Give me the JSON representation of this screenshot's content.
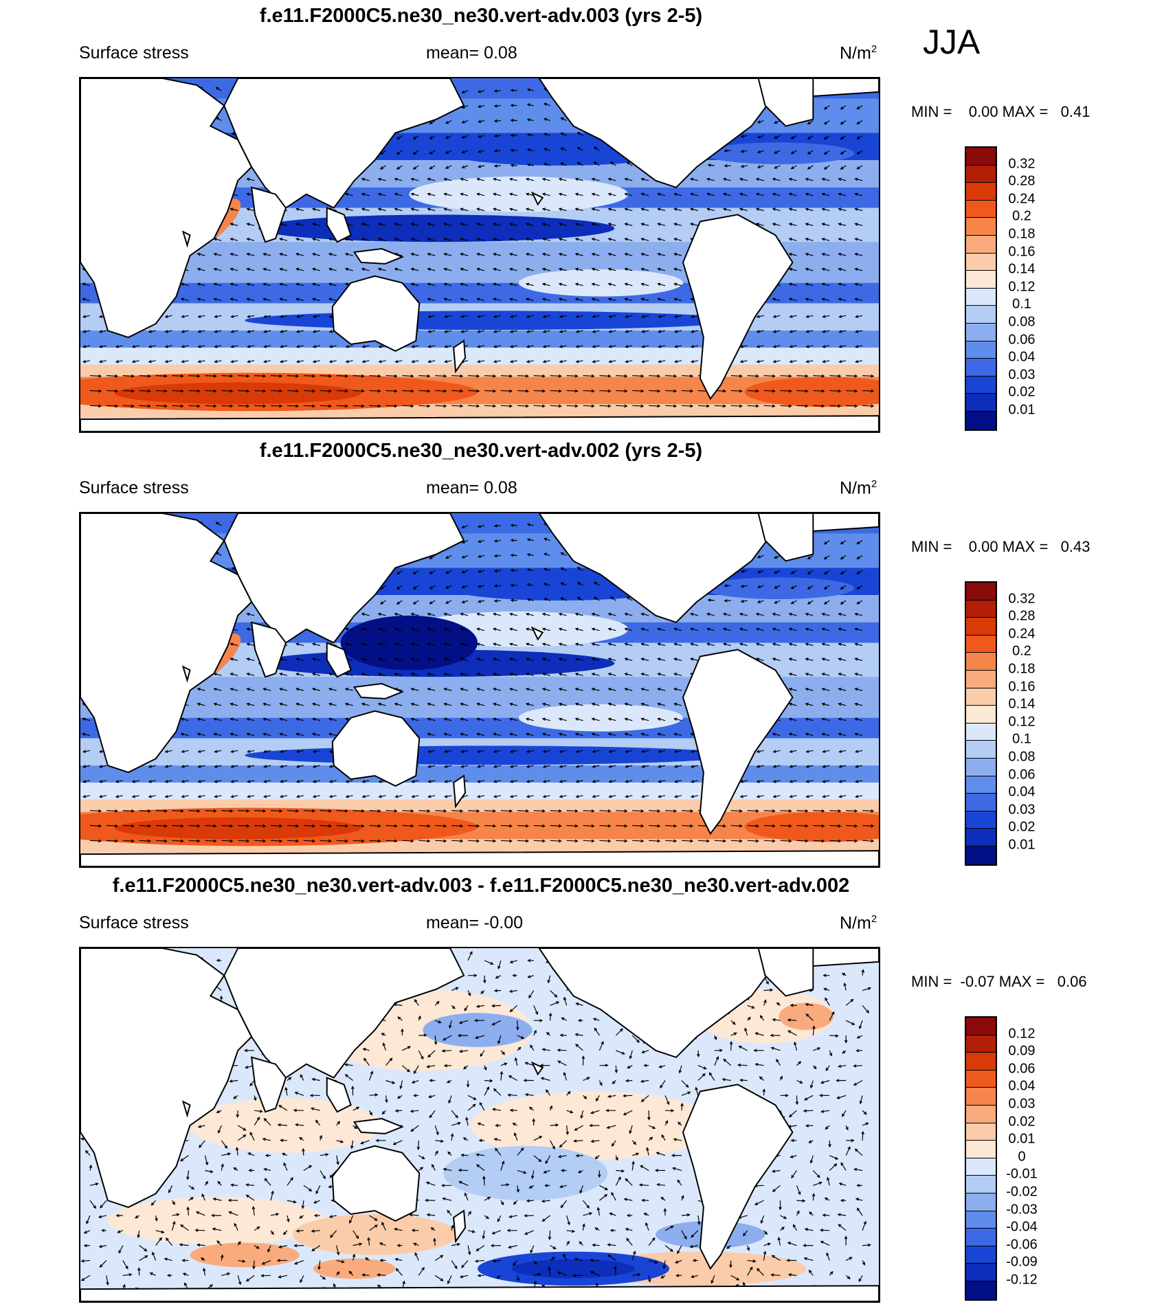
{
  "season": "JJA",
  "palette_abs": [
    "#8b0a0a",
    "#b31e06",
    "#d93a08",
    "#f0591c",
    "#f5854a",
    "#f9ab7d",
    "#fbccaa",
    "#fde8d6",
    "#dbe8fb",
    "#b4cdf5",
    "#8caeef",
    "#5f8deb",
    "#3d6ae4",
    "#1945d6",
    "#0c2ebb",
    "#030f86"
  ],
  "palette_diff": [
    "#8b0a0a",
    "#b31e06",
    "#d93a08",
    "#f0591c",
    "#f5854a",
    "#f9ab7d",
    "#fbccaa",
    "#fde8d6",
    "#dbe8fb",
    "#b4cdf5",
    "#8caeef",
    "#5f8deb",
    "#3d6ae4",
    "#1945d6",
    "#0c2ebb",
    "#030f86"
  ],
  "panels": [
    {
      "title": "f.e11.F2000C5.ne30_ne30.vert-adv.003 (yrs 2-5)",
      "variable": "Surface stress",
      "mean": "mean=   0.08",
      "units": "N/m",
      "units_exp": "2",
      "minmax": "MIN =    0.00 MAX =   0.41",
      "colorbar_labels": [
        "0.32",
        "0.28",
        "0.24",
        "0.2",
        "0.18",
        "0.16",
        "0.14",
        "0.12",
        "0.1",
        "0.08",
        "0.06",
        "0.04",
        "0.03",
        "0.02",
        "0.01"
      ]
    },
    {
      "title": "f.e11.F2000C5.ne30_ne30.vert-adv.002 (yrs 2-5)",
      "variable": "Surface stress",
      "mean": "mean=   0.08",
      "units": "N/m",
      "units_exp": "2",
      "minmax": "MIN =    0.00 MAX =   0.43",
      "colorbar_labels": [
        "0.32",
        "0.28",
        "0.24",
        "0.2",
        "0.18",
        "0.16",
        "0.14",
        "0.12",
        "0.1",
        "0.08",
        "0.06",
        "0.04",
        "0.03",
        "0.02",
        "0.01"
      ]
    },
    {
      "title": "f.e11.F2000C5.ne30_ne30.vert-adv.003 - f.e11.F2000C5.ne30_ne30.vert-adv.002",
      "variable": "Surface stress",
      "mean": "mean=  -0.00",
      "units": "N/m",
      "units_exp": "2",
      "minmax": "MIN =  -0.07 MAX =   0.06",
      "colorbar_labels": [
        "0.12",
        "0.09",
        "0.06",
        "0.04",
        "0.03",
        "0.02",
        "0.01",
        "0",
        "-0.01",
        "-0.02",
        "-0.03",
        "-0.04",
        "-0.06",
        "-0.09",
        "-0.12"
      ]
    }
  ]
}
